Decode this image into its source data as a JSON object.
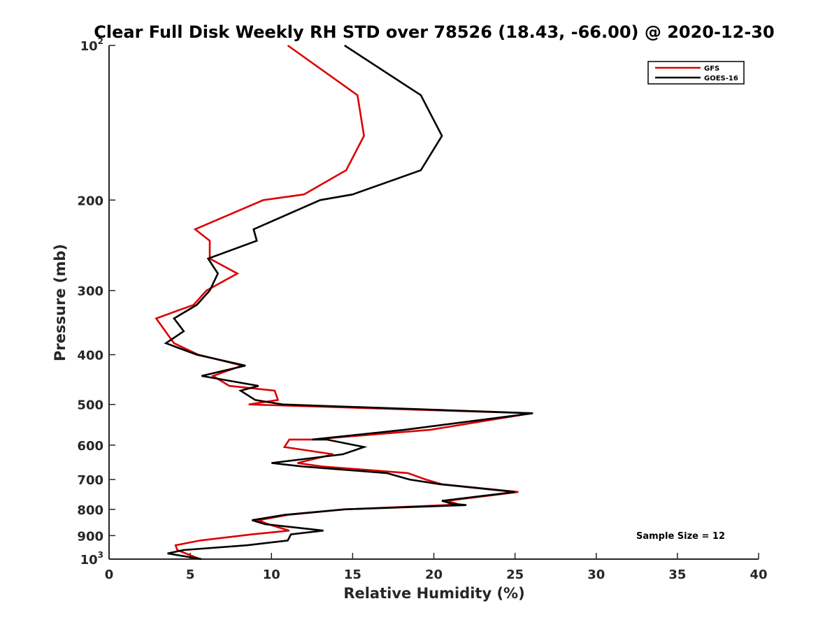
{
  "chart_data": {
    "type": "line",
    "title": "Clear Full Disk Weekly RH STD over 78526 (18.43, -66.00) @ 2020-12-30",
    "xlabel": "Relative Humidity (%)",
    "ylabel": "Pressure (mb)",
    "xlim": [
      0,
      40
    ],
    "ylim": [
      100,
      1000
    ],
    "y_scale": "log",
    "y_reversed": true,
    "grid": false,
    "legend_position": "top-right",
    "x_ticks": [
      0,
      5,
      10,
      15,
      20,
      25,
      30,
      35,
      40
    ],
    "x_tick_labels": [
      "0",
      "5",
      "10",
      "15",
      "20",
      "25",
      "30",
      "35",
      "40"
    ],
    "y_ticks": [
      100,
      200,
      300,
      400,
      500,
      600,
      700,
      800,
      900,
      1000
    ],
    "y_tick_labels": [
      {
        "base": "10",
        "exp": "2"
      },
      {
        "base": "200",
        "exp": ""
      },
      {
        "base": "300",
        "exp": ""
      },
      {
        "base": "400",
        "exp": ""
      },
      {
        "base": "500",
        "exp": ""
      },
      {
        "base": "600",
        "exp": ""
      },
      {
        "base": "700",
        "exp": ""
      },
      {
        "base": "800",
        "exp": ""
      },
      {
        "base": "900",
        "exp": ""
      },
      {
        "base": "10",
        "exp": "3"
      }
    ],
    "annotation": "Sample Size = 12",
    "series": [
      {
        "name": "GFS",
        "color": "#dd0000",
        "points": [
          [
            11.0,
            100
          ],
          [
            15.3,
            125
          ],
          [
            15.7,
            150
          ],
          [
            14.6,
            175
          ],
          [
            12.0,
            195
          ],
          [
            9.5,
            200
          ],
          [
            5.3,
            228
          ],
          [
            6.2,
            240
          ],
          [
            6.2,
            260
          ],
          [
            7.9,
            278
          ],
          [
            6.0,
            300
          ],
          [
            5.2,
            320
          ],
          [
            2.9,
            340
          ],
          [
            3.6,
            365
          ],
          [
            4.0,
            380
          ],
          [
            5.5,
            400
          ],
          [
            8.2,
            420
          ],
          [
            6.4,
            440
          ],
          [
            7.4,
            460
          ],
          [
            10.2,
            470
          ],
          [
            10.4,
            490
          ],
          [
            8.6,
            500
          ],
          [
            26.0,
            520
          ],
          [
            19.8,
            560
          ],
          [
            12.5,
            585
          ],
          [
            11.1,
            585
          ],
          [
            10.8,
            605
          ],
          [
            13.8,
            625
          ],
          [
            11.6,
            650
          ],
          [
            13.1,
            660
          ],
          [
            18.4,
            680
          ],
          [
            19.5,
            700
          ],
          [
            20.5,
            715
          ],
          [
            25.2,
            740
          ],
          [
            20.8,
            770
          ],
          [
            21.4,
            780
          ],
          [
            20.8,
            785
          ],
          [
            14.5,
            800
          ],
          [
            11.0,
            820
          ],
          [
            9.2,
            840
          ],
          [
            9.8,
            855
          ],
          [
            11.1,
            880
          ],
          [
            8.8,
            895
          ],
          [
            5.6,
            920
          ],
          [
            4.1,
            940
          ],
          [
            4.2,
            960
          ],
          [
            5.6,
            1000
          ]
        ]
      },
      {
        "name": "GOES-16",
        "color": "#000000",
        "points": [
          [
            14.5,
            100
          ],
          [
            19.2,
            125
          ],
          [
            20.5,
            150
          ],
          [
            19.2,
            175
          ],
          [
            15.0,
            195
          ],
          [
            13.0,
            200
          ],
          [
            8.9,
            228
          ],
          [
            9.1,
            240
          ],
          [
            6.1,
            260
          ],
          [
            6.7,
            278
          ],
          [
            6.2,
            300
          ],
          [
            5.4,
            320
          ],
          [
            4.0,
            340
          ],
          [
            4.6,
            360
          ],
          [
            3.5,
            380
          ],
          [
            5.4,
            400
          ],
          [
            8.4,
            420
          ],
          [
            5.7,
            440
          ],
          [
            9.2,
            460
          ],
          [
            8.1,
            470
          ],
          [
            9.0,
            490
          ],
          [
            10.7,
            500
          ],
          [
            26.1,
            520
          ],
          [
            18.2,
            560
          ],
          [
            12.5,
            585
          ],
          [
            13.4,
            585
          ],
          [
            15.7,
            605
          ],
          [
            14.4,
            625
          ],
          [
            10.0,
            650
          ],
          [
            11.9,
            660
          ],
          [
            17.1,
            680
          ],
          [
            18.5,
            700
          ],
          [
            20.4,
            715
          ],
          [
            25.0,
            740
          ],
          [
            20.5,
            770
          ],
          [
            21.1,
            780
          ],
          [
            22.0,
            785
          ],
          [
            14.5,
            800
          ],
          [
            10.8,
            820
          ],
          [
            8.8,
            840
          ],
          [
            9.6,
            855
          ],
          [
            13.2,
            880
          ],
          [
            11.2,
            895
          ],
          [
            11.0,
            920
          ],
          [
            8.5,
            940
          ],
          [
            4.6,
            960
          ],
          [
            3.6,
            975
          ],
          [
            5.7,
            1000
          ]
        ]
      }
    ]
  }
}
